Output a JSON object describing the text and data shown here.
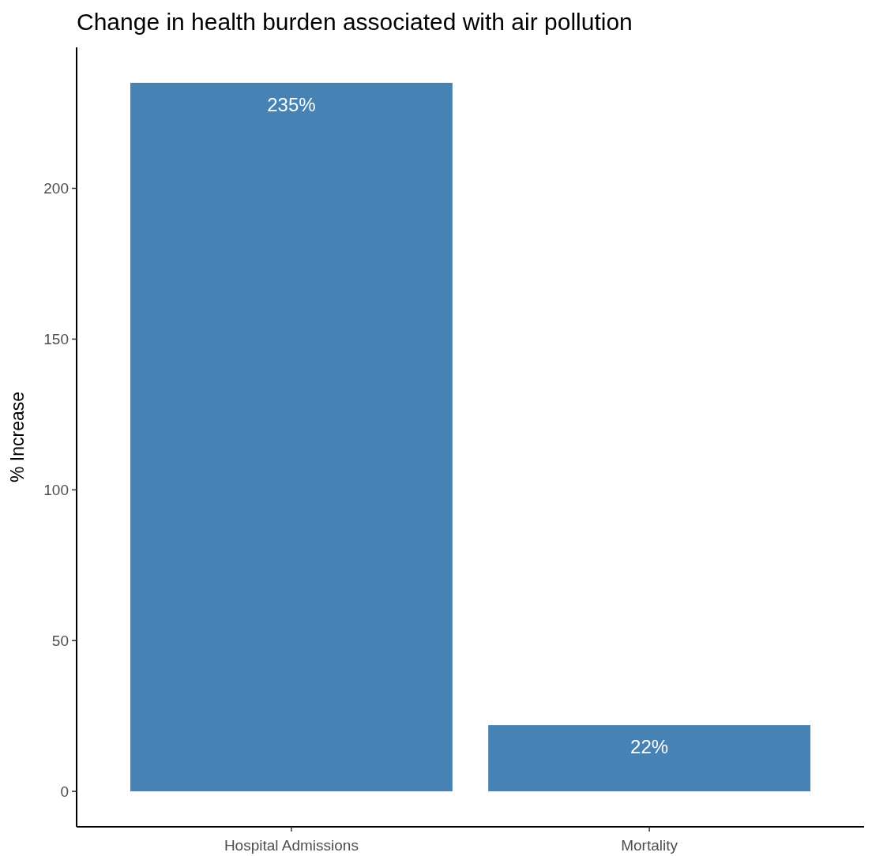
{
  "chart_data": {
    "type": "bar",
    "title": "Change in health burden associated with air pollution",
    "ylabel": "% Increase",
    "categories": [
      "Hospital Admissions",
      "Mortality"
    ],
    "values": [
      235,
      22
    ],
    "color": "#4682b4",
    "value_labels": [
      "235%",
      "22%"
    ],
    "ylim": [
      -11.75,
      246.75
    ],
    "yticks": [
      0,
      50,
      100,
      150,
      200
    ]
  }
}
